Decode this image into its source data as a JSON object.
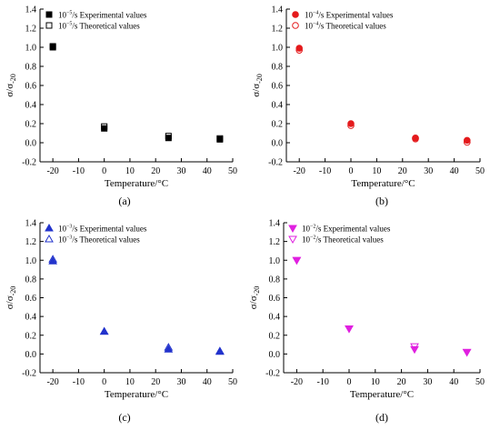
{
  "chart_data": [
    {
      "type": "scatter",
      "panel_label": "(a)",
      "xlabel": "Temperature/°C",
      "ylabel": "σ/σ",
      "ylabel_sub": "-20",
      "xlim": [
        -25,
        50
      ],
      "ylim": [
        -0.2,
        1.4
      ],
      "xticks": [
        -20,
        -10,
        0,
        10,
        20,
        30,
        40,
        50
      ],
      "yticks": [
        -0.2,
        0.0,
        0.2,
        0.4,
        0.6,
        0.8,
        1.0,
        1.2,
        1.4
      ],
      "legend_position": "top-left",
      "series": [
        {
          "name_base": "10",
          "name_exp": "−5",
          "name_rest": "/s Experimental values",
          "marker": "square",
          "filled": true,
          "color": "#000000",
          "x": [
            -20,
            0,
            25,
            45
          ],
          "y": [
            1.0,
            0.15,
            0.05,
            0.035
          ]
        },
        {
          "name_base": "10",
          "name_exp": "−5",
          "name_rest": "/s Theoretical values",
          "marker": "square",
          "filled": false,
          "color": "#000000",
          "x": [
            -20,
            0,
            25,
            45
          ],
          "y": [
            1.01,
            0.17,
            0.07,
            0.045
          ]
        }
      ]
    },
    {
      "type": "scatter",
      "panel_label": "(b)",
      "xlabel": "Temperature/°C",
      "ylabel": "σ/σ",
      "ylabel_sub": "-20",
      "xlim": [
        -25,
        50
      ],
      "ylim": [
        -0.2,
        1.4
      ],
      "xticks": [
        -20,
        -10,
        0,
        10,
        20,
        30,
        40,
        50
      ],
      "yticks": [
        -0.2,
        0.0,
        0.2,
        0.4,
        0.6,
        0.8,
        1.0,
        1.2,
        1.4
      ],
      "legend_position": "top-left",
      "series": [
        {
          "name_base": "10",
          "name_exp": "−4",
          "name_rest": "/s Experimental values",
          "marker": "circle",
          "filled": true,
          "color": "#e41a1c",
          "x": [
            -20,
            0,
            25,
            45
          ],
          "y": [
            0.99,
            0.2,
            0.05,
            0.025
          ]
        },
        {
          "name_base": "10",
          "name_exp": "−4",
          "name_rest": "/s Theoretical values",
          "marker": "circle",
          "filled": false,
          "color": "#e41a1c",
          "x": [
            -20,
            0,
            25,
            45
          ],
          "y": [
            0.97,
            0.18,
            0.04,
            0.005
          ]
        }
      ]
    },
    {
      "type": "scatter",
      "panel_label": "(c)",
      "xlabel": "Temperature/°C",
      "ylabel": "σ/σ",
      "ylabel_sub": "-20",
      "xlim": [
        -25,
        50
      ],
      "ylim": [
        -0.2,
        1.4
      ],
      "xticks": [
        -20,
        -10,
        0,
        10,
        20,
        30,
        40,
        50
      ],
      "yticks": [
        -0.2,
        0.0,
        0.2,
        0.4,
        0.6,
        0.8,
        1.0,
        1.2,
        1.4
      ],
      "legend_position": "top-left",
      "series": [
        {
          "name_base": "10",
          "name_exp": "−3",
          "name_rest": "/s Experimental values",
          "marker": "triangle-up",
          "filled": true,
          "color": "#2233cc",
          "x": [
            -20,
            0,
            25,
            45
          ],
          "y": [
            0.99,
            0.24,
            0.05,
            0.025
          ]
        },
        {
          "name_base": "10",
          "name_exp": "−3",
          "name_rest": "/s Theoretical values",
          "marker": "triangle-up",
          "filled": false,
          "color": "#2233cc",
          "x": [
            -20,
            0,
            25,
            45
          ],
          "y": [
            1.01,
            0.24,
            0.07,
            0.03
          ]
        }
      ]
    },
    {
      "type": "scatter",
      "panel_label": "(d)",
      "xlabel": "Temperature/°C",
      "ylabel": "σ/σ",
      "ylabel_sub": "-20",
      "xlim": [
        -25,
        50
      ],
      "ylim": [
        -0.2,
        1.4
      ],
      "xticks": [
        -20,
        -10,
        0,
        10,
        20,
        30,
        40,
        50
      ],
      "yticks": [
        -0.2,
        0.0,
        0.2,
        0.4,
        0.6,
        0.8,
        1.0,
        1.2,
        1.4
      ],
      "legend_position": "top-left",
      "series": [
        {
          "name_base": "10",
          "name_exp": "−2",
          "name_rest": "/s Experimental values",
          "marker": "triangle-down",
          "filled": true,
          "color": "#e020e0",
          "x": [
            -20,
            0,
            25,
            45
          ],
          "y": [
            1.0,
            0.27,
            0.05,
            0.02
          ]
        },
        {
          "name_base": "10",
          "name_exp": "−2",
          "name_rest": "/s Theoretical values",
          "marker": "triangle-down",
          "filled": false,
          "color": "#e020e0",
          "x": [
            -20,
            0,
            25,
            45
          ],
          "y": [
            1.0,
            0.27,
            0.08,
            0.02
          ]
        }
      ]
    }
  ]
}
